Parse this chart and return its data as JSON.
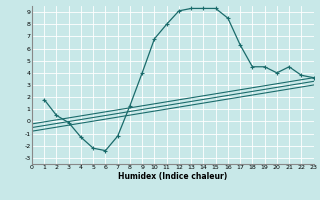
{
  "xlabel": "Humidex (Indice chaleur)",
  "bg_color": "#c8e8e8",
  "grid_color": "#ffffff",
  "line_color": "#1a6b6b",
  "xlim": [
    0,
    23
  ],
  "ylim": [
    -3.5,
    9.5
  ],
  "xticks": [
    0,
    1,
    2,
    3,
    4,
    5,
    6,
    7,
    8,
    9,
    10,
    11,
    12,
    13,
    14,
    15,
    16,
    17,
    18,
    19,
    20,
    21,
    22,
    23
  ],
  "yticks": [
    -3,
    -2,
    -1,
    0,
    1,
    2,
    3,
    4,
    5,
    6,
    7,
    8,
    9
  ],
  "main_curve_x": [
    1,
    2,
    3,
    4,
    5,
    6,
    7,
    8,
    9,
    10,
    11,
    12,
    13,
    14,
    15,
    16,
    17,
    18,
    19,
    20,
    21,
    22,
    23
  ],
  "main_curve_y": [
    1.8,
    0.5,
    -0.1,
    -1.3,
    -2.2,
    -2.4,
    -1.2,
    1.3,
    4.0,
    6.8,
    8.0,
    9.1,
    9.3,
    9.3,
    9.3,
    8.5,
    6.3,
    4.5,
    4.5,
    4.0,
    4.5,
    3.8,
    3.6
  ],
  "line1_x": [
    0,
    23
  ],
  "line1_y": [
    -0.2,
    3.6
  ],
  "line2_x": [
    0,
    23
  ],
  "line2_y": [
    -0.5,
    3.3
  ],
  "line3_x": [
    0,
    23
  ],
  "line3_y": [
    -0.8,
    3.0
  ]
}
